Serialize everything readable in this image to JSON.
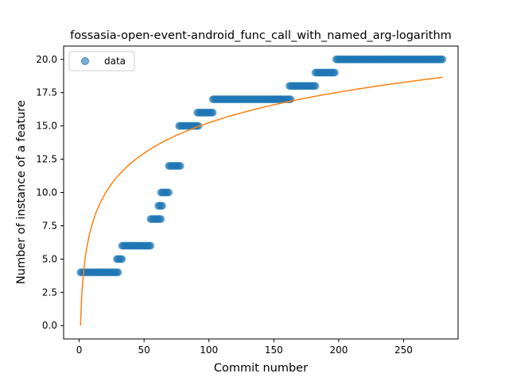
{
  "chart_data": {
    "type": "scatter",
    "title": "fossasia-open-event-android_func_call_with_named_arg-logarithm",
    "xlabel": "Commit number",
    "ylabel": "Number of instance of a feature",
    "xlim": [
      -12,
      292
    ],
    "ylim": [
      -1,
      21
    ],
    "xticks": [
      0,
      50,
      100,
      150,
      200,
      250
    ],
    "xtick_labels": [
      "0",
      "50",
      "100",
      "150",
      "200",
      "250"
    ],
    "yticks": [
      0,
      2.5,
      5,
      7.5,
      10,
      12.5,
      15,
      17.5,
      20
    ],
    "ytick_labels": [
      "0.0",
      "2.5",
      "5.0",
      "7.5",
      "10.0",
      "12.5",
      "15.0",
      "17.5",
      "20.0"
    ],
    "legend": {
      "position": "top-left",
      "entries": [
        "data"
      ]
    },
    "grid": false,
    "series": [
      {
        "name": "data",
        "style": "markers",
        "color": "#1f77b4",
        "steps": [
          {
            "x_start": 1,
            "x_end": 30,
            "y": 4
          },
          {
            "x_start": 29,
            "x_end": 33,
            "y": 5
          },
          {
            "x_start": 33,
            "x_end": 55,
            "y": 6
          },
          {
            "x_start": 55,
            "x_end": 63,
            "y": 8
          },
          {
            "x_start": 61,
            "x_end": 64,
            "y": 9
          },
          {
            "x_start": 63,
            "x_end": 69,
            "y": 10
          },
          {
            "x_start": 69,
            "x_end": 78,
            "y": 12
          },
          {
            "x_start": 77,
            "x_end": 92,
            "y": 15
          },
          {
            "x_start": 91,
            "x_end": 103,
            "y": 16
          },
          {
            "x_start": 103,
            "x_end": 163,
            "y": 17
          },
          {
            "x_start": 162,
            "x_end": 182,
            "y": 18
          },
          {
            "x_start": 182,
            "x_end": 197,
            "y": 19
          },
          {
            "x_start": 198,
            "x_end": 280,
            "y": 20
          }
        ]
      },
      {
        "name": "",
        "style": "line",
        "color": "#ff7f0e",
        "function": "logarithmic fit",
        "x": [
          1,
          2,
          3,
          5,
          10,
          20,
          30,
          50,
          75,
          100,
          150,
          200,
          250,
          280
        ],
        "y": [
          0,
          2.28,
          3.77,
          5.28,
          7.36,
          9.44,
          10.65,
          12.17,
          13.39,
          14.25,
          15.47,
          16.33,
          17.0,
          18.65
        ]
      }
    ]
  }
}
